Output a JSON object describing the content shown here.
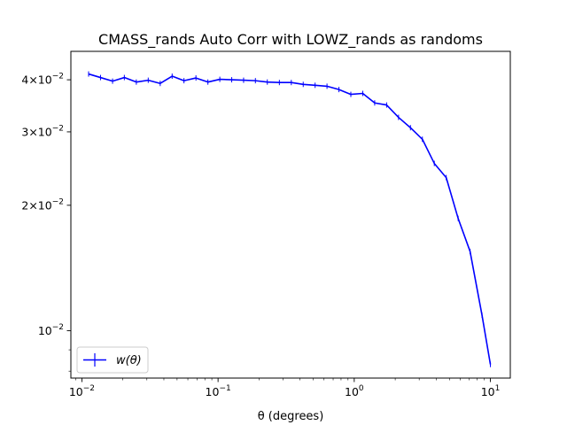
{
  "chart_data": {
    "type": "line",
    "title": "CMASS_rands Auto Corr with LOWZ_rands as randoms",
    "xlabel": "θ (degrees)",
    "ylabel": "",
    "x_scale": "log",
    "y_scale": "log",
    "xlim": [
      0.0083,
      14.0
    ],
    "ylim": [
      0.0077,
      0.0468
    ],
    "grid": false,
    "legend_position": "lower-left",
    "x_ticks": [
      {
        "value": 0.01,
        "base": "10",
        "exp": "−2"
      },
      {
        "value": 0.1,
        "base": "10",
        "exp": "−1"
      },
      {
        "value": 1,
        "base": "10",
        "exp": "0"
      },
      {
        "value": 10,
        "base": "10",
        "exp": "1"
      }
    ],
    "y_ticks": [
      {
        "value": 0.04,
        "mant": "4",
        "exp": "−2"
      },
      {
        "value": 0.03,
        "mant": "3",
        "exp": "−2"
      },
      {
        "value": 0.02,
        "mant": "2",
        "exp": "−2"
      },
      {
        "value": 0.01,
        "mant": "",
        "exp": "−2"
      }
    ],
    "y_minor_ticks": [
      0.009,
      0.008
    ],
    "series": [
      {
        "name": "w(θ)",
        "color": "#0000ff",
        "x": [
          0.0112,
          0.0137,
          0.0168,
          0.0205,
          0.0251,
          0.0307,
          0.0376,
          0.046,
          0.0562,
          0.0688,
          0.0842,
          0.103,
          0.126,
          0.154,
          0.188,
          0.23,
          0.282,
          0.345,
          0.422,
          0.516,
          0.631,
          0.772,
          0.944,
          1.155,
          1.413,
          1.729,
          2.115,
          2.587,
          3.165,
          3.873,
          4.738,
          5.796,
          7.091,
          8.676,
          10.0
        ],
        "y": [
          0.0413,
          0.0405,
          0.0397,
          0.0405,
          0.0395,
          0.0399,
          0.0392,
          0.0408,
          0.0398,
          0.0404,
          0.0395,
          0.0401,
          0.04,
          0.0399,
          0.0398,
          0.0395,
          0.0394,
          0.0394,
          0.039,
          0.0388,
          0.0386,
          0.0379,
          0.0369,
          0.0371,
          0.0352,
          0.0348,
          0.0325,
          0.0307,
          0.0288,
          0.0252,
          0.0233,
          0.0186,
          0.0155,
          0.0109,
          0.0083
        ],
        "yerr": [
          0.0005,
          0.0004,
          0.0004,
          0.0003,
          0.0003,
          0.0003,
          0.0003,
          0.0002,
          0.0002,
          0.0002,
          0.0002,
          0.0001,
          0.0001,
          0.0001,
          0.0001,
          0.0001,
          0.0001,
          0.0001,
          0.0001,
          0.0001,
          0.0001,
          0.0001,
          0.0001,
          0.0001,
          0.0001,
          0.0001,
          0.0001,
          0.0001,
          0.0001,
          0.0001,
          0.0001,
          0.0001,
          0.0001,
          0.0001,
          0.0001
        ]
      }
    ]
  }
}
